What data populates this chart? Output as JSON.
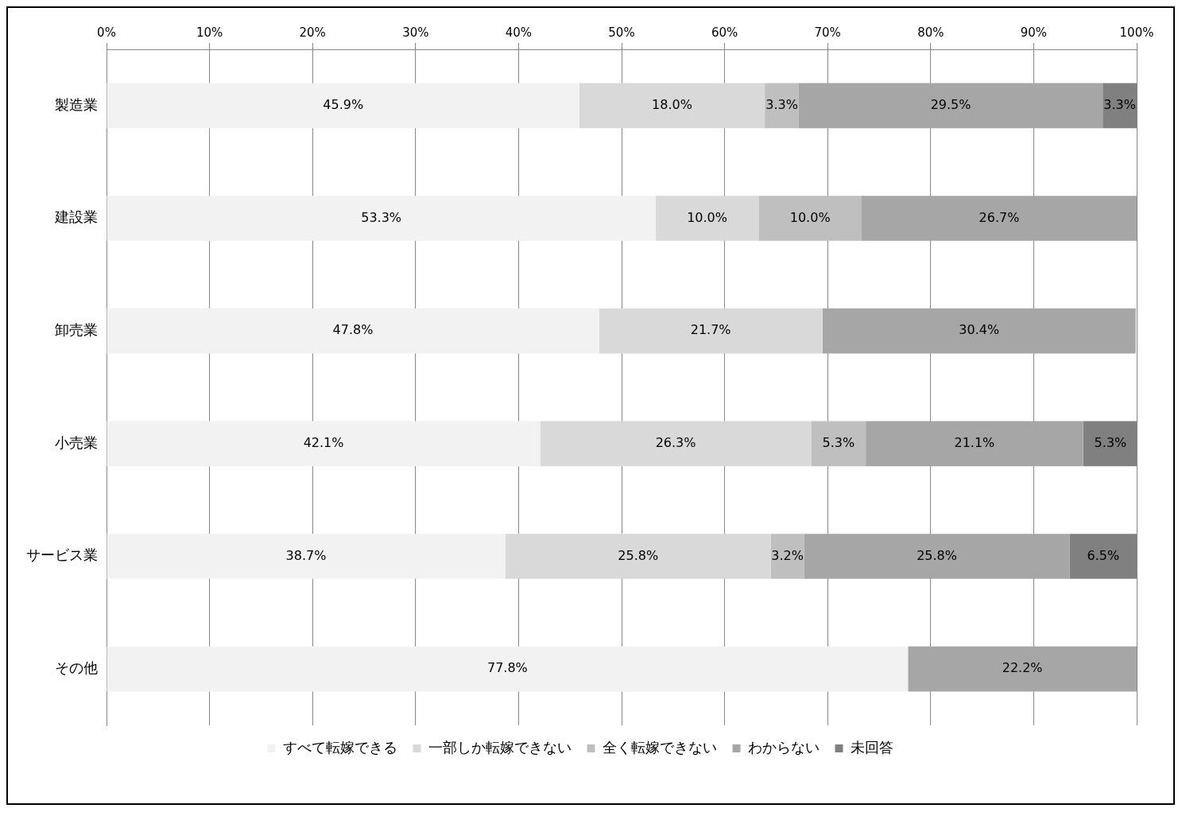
{
  "chart_data": {
    "type": "bar",
    "orientation": "horizontal",
    "stacked": true,
    "categories": [
      "製造業",
      "建設業",
      "卸売業",
      "小売業",
      "サービス業",
      "その他"
    ],
    "series": [
      {
        "name": "すべて転嫁できる",
        "color": "#f2f2f2",
        "values": [
          45.9,
          53.3,
          47.8,
          42.1,
          38.7,
          77.8
        ],
        "value_labels": [
          "45.9%",
          "53.3%",
          "47.8%",
          "42.1%",
          "38.7%",
          "77.8%"
        ]
      },
      {
        "name": "一部しか転嫁できない",
        "color": "#d9d9d9",
        "values": [
          18.0,
          10.0,
          21.7,
          26.3,
          25.8,
          0
        ],
        "value_labels": [
          "18.0%",
          "10.0%",
          "21.7%",
          "26.3%",
          "25.8%",
          null
        ]
      },
      {
        "name": "全く転嫁できない",
        "color": "#bfbfbf",
        "values": [
          3.3,
          10.0,
          0,
          5.3,
          3.2,
          0
        ],
        "value_labels": [
          "3.3%",
          "10.0%",
          null,
          "5.3%",
          "3.2%",
          null
        ]
      },
      {
        "name": "わからない",
        "color": "#a6a6a6",
        "values": [
          29.5,
          26.7,
          30.4,
          21.1,
          25.8,
          22.2
        ],
        "value_labels": [
          "29.5%",
          "26.7%",
          "30.4%",
          "21.1%",
          "25.8%",
          "22.2%"
        ]
      },
      {
        "name": "未回答",
        "color": "#808080",
        "values": [
          3.3,
          0,
          0,
          5.3,
          6.5,
          0
        ],
        "value_labels": [
          "3.3%",
          null,
          null,
          "5.3%",
          "6.5%",
          null
        ]
      }
    ],
    "xlim": [
      0,
      100
    ],
    "xticks": [
      {
        "value": 0,
        "label": "0%"
      },
      {
        "value": 10,
        "label": "10%"
      },
      {
        "value": 20,
        "label": "20%"
      },
      {
        "value": 30,
        "label": "30%"
      },
      {
        "value": 40,
        "label": "40%"
      },
      {
        "value": 50,
        "label": "50%"
      },
      {
        "value": 60,
        "label": "60%"
      },
      {
        "value": 70,
        "label": "70%"
      },
      {
        "value": 80,
        "label": "80%"
      },
      {
        "value": 90,
        "label": "90%"
      },
      {
        "value": 100,
        "label": "100%"
      }
    ],
    "grid": "x",
    "legend": "bottom"
  }
}
